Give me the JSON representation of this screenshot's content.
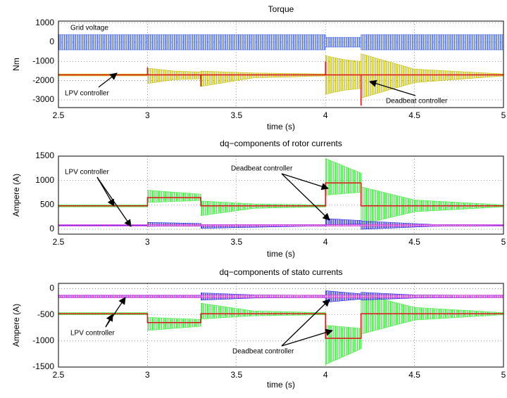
{
  "chart_data": [
    {
      "type": "line",
      "title": "Torque",
      "xlabel": "time (s)",
      "ylabel": "Nm",
      "xlim": [
        2.5,
        5
      ],
      "xticks": [
        2.5,
        3,
        3.5,
        4,
        4.5,
        5
      ],
      "ylim": [
        -3400,
        1100
      ],
      "yticks": [
        -3000,
        -2000,
        -1000,
        0,
        1000
      ],
      "grid": true,
      "series": [
        {
          "color": "#3a5fe0",
          "x": [
            2.5,
            4,
            4,
            4.2,
            4.2,
            5
          ],
          "values": [
            400,
            400,
            250,
            250,
            400,
            400
          ],
          "lower": [
            -400,
            -400,
            -250,
            -250,
            -400,
            -400
          ]
        },
        {
          "color": "#c4bd00",
          "x": [
            2.5,
            3,
            3,
            3.15,
            3.3,
            3.3,
            3.6,
            4,
            4,
            4.1,
            4.2,
            4.2,
            4.5,
            5
          ],
          "values": [
            -1650,
            -1650,
            -1350,
            -1500,
            -1550,
            -1500,
            -1600,
            -1650,
            -700,
            -900,
            -1000,
            -600,
            -1400,
            -1650
          ],
          "lower": [
            -1750,
            -1750,
            -2150,
            -1950,
            -1900,
            -2300,
            -1850,
            -1750,
            -2700,
            -2500,
            -2400,
            -2900,
            -2100,
            -1750
          ]
        },
        {
          "color": "#dd1111",
          "x": [
            2.5,
            3,
            3,
            3,
            3.3,
            3.3,
            3.3,
            4,
            4,
            4,
            4.2,
            4.2,
            4.2,
            5
          ],
          "values": [
            -1700,
            -1700,
            -1300,
            -1700,
            -1700,
            -2300,
            -1700,
            -1700,
            -1000,
            -1700,
            -1700,
            -3300,
            -1700,
            -1700
          ]
        }
      ],
      "annotations": [
        "Grid voltage",
        "LPV controller",
        "Deadbeat controller"
      ]
    },
    {
      "type": "line",
      "title": "dq−components of rotor currents",
      "xlabel": "time (s)",
      "ylabel": "Ampere (A)",
      "xlim": [
        2.5,
        5
      ],
      "xticks": [
        2.5,
        3,
        3.5,
        4,
        4.5,
        5
      ],
      "ylim": [
        -100,
        1500
      ],
      "yticks": [
        0,
        500,
        1000,
        1500
      ],
      "grid": true,
      "series": [
        {
          "color": "#33ee33",
          "x": [
            2.5,
            3,
            3,
            3.3,
            3.3,
            3.6,
            4,
            4,
            4.2,
            4.2,
            4.5,
            5
          ],
          "values": [
            500,
            500,
            800,
            720,
            580,
            520,
            500,
            1450,
            1150,
            870,
            600,
            500
          ],
          "lower": [
            460,
            460,
            550,
            590,
            280,
            430,
            460,
            700,
            760,
            100,
            360,
            460
          ]
        },
        {
          "color": "#dd1111",
          "x": [
            2.5,
            3,
            3,
            3.3,
            3.3,
            4,
            4,
            4.2,
            4.2,
            5
          ],
          "values": [
            480,
            480,
            650,
            650,
            480,
            480,
            950,
            950,
            480,
            480
          ]
        },
        {
          "color": "#2222ee",
          "x": [
            2.5,
            3,
            3,
            3.3,
            3.3,
            4,
            4,
            4.2,
            4.2,
            4.6,
            5
          ],
          "values": [
            85,
            85,
            140,
            120,
            100,
            90,
            220,
            180,
            170,
            100,
            85
          ],
          "lower": [
            75,
            75,
            60,
            70,
            20,
            70,
            90,
            110,
            0,
            60,
            75
          ]
        },
        {
          "color": "#dd33dd",
          "x": [
            2.5,
            5
          ],
          "values": [
            95,
            95
          ],
          "lower": [
            65,
            65
          ]
        }
      ],
      "annotations": [
        "LPV controller",
        "Deadbeat controller"
      ]
    },
    {
      "type": "line",
      "title": "dq−components of stato currents",
      "xlabel": "time (s)",
      "ylabel": "Ampere (A)",
      "xlim": [
        2.5,
        5
      ],
      "xticks": [
        2.5,
        3,
        3.5,
        4,
        4.5,
        5
      ],
      "ylim": [
        -1500,
        100
      ],
      "yticks": [
        -1500,
        -1000,
        -500,
        0
      ],
      "grid": true,
      "series": [
        {
          "color": "#33ee33",
          "x": [
            2.5,
            3,
            3,
            3.3,
            3.3,
            3.6,
            4,
            4,
            4.2,
            4.2,
            4.5,
            5
          ],
          "values": [
            -460,
            -460,
            -550,
            -590,
            -280,
            -430,
            -460,
            -700,
            -760,
            -100,
            -360,
            -460
          ],
          "lower": [
            -500,
            -500,
            -800,
            -720,
            -580,
            -520,
            -500,
            -1450,
            -1150,
            -870,
            -600,
            -500
          ]
        },
        {
          "color": "#dd1111",
          "x": [
            2.5,
            3,
            3,
            3.3,
            3.3,
            4,
            4,
            4.2,
            4.2,
            5
          ],
          "values": [
            -480,
            -480,
            -650,
            -650,
            -480,
            -480,
            -950,
            -950,
            -480,
            -480
          ]
        },
        {
          "color": "#2222ee",
          "x": [
            2.5,
            3.3,
            3.3,
            3.6,
            4,
            4,
            4.2,
            4.2,
            4.5,
            5
          ],
          "values": [
            -130,
            -130,
            -80,
            -120,
            -130,
            -40,
            -100,
            -70,
            -120,
            -130
          ],
          "lower": [
            -170,
            -170,
            -220,
            -180,
            -170,
            -260,
            -200,
            -220,
            -180,
            -170
          ]
        },
        {
          "color": "#dd33dd",
          "x": [
            2.5,
            5
          ],
          "values": [
            -125,
            -125
          ],
          "lower": [
            -175,
            -175
          ]
        }
      ],
      "annotations": [
        "LPV controller",
        "Deadbeat controller"
      ]
    }
  ]
}
